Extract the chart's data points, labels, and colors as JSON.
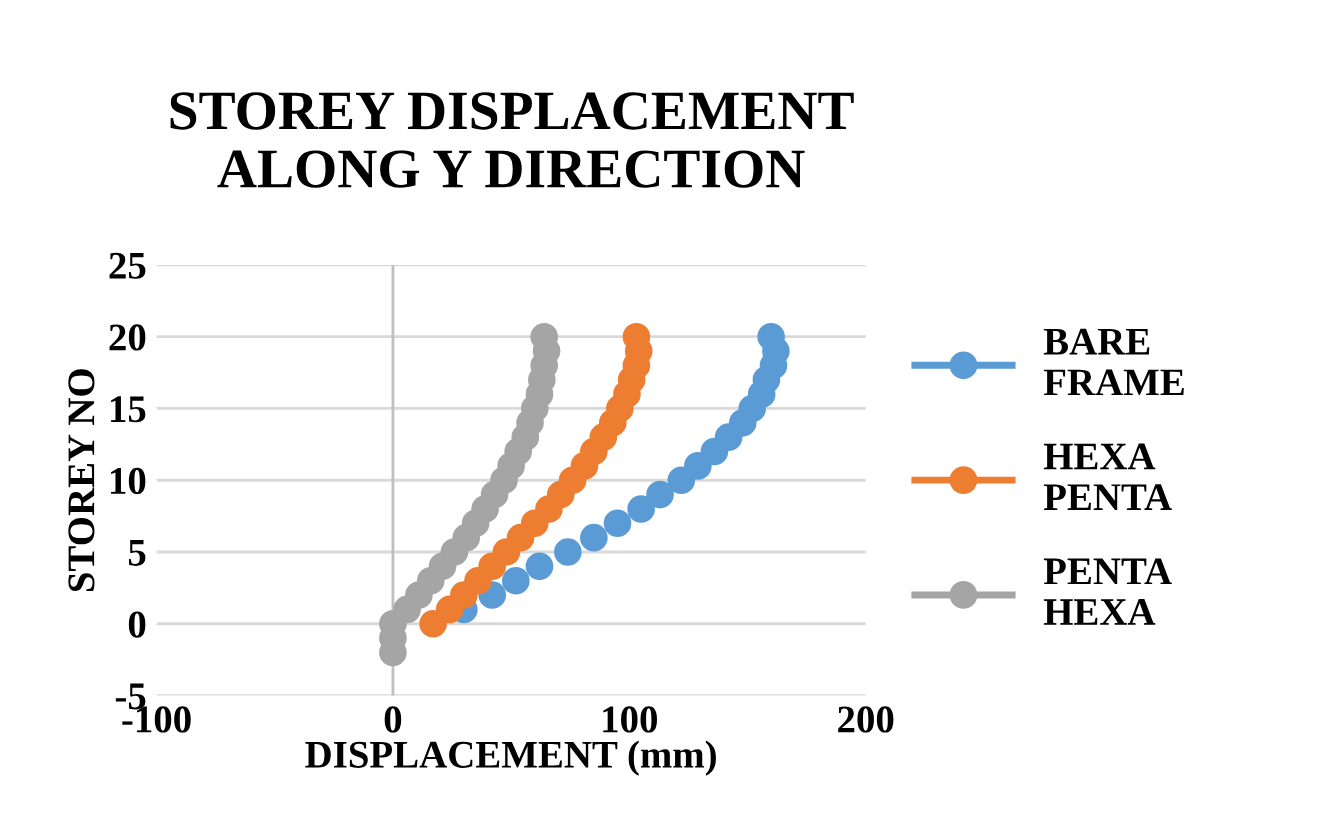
{
  "chart_data": {
    "type": "scatter",
    "title": "STOREY DISPLACEMENT\nALONG Y DIRECTION",
    "xlabel": "DISPLACEMENT (mm)",
    "ylabel": "STOREY NO",
    "xlim": [
      -100,
      200
    ],
    "xticks": [
      -100,
      0,
      100,
      200
    ],
    "ylim": [
      -5,
      25
    ],
    "yticks": [
      -5,
      0,
      5,
      10,
      15,
      20,
      25
    ],
    "grid": "y",
    "legend": "right",
    "marker": "circle",
    "ref_lines": [
      {
        "axis": "x",
        "value": 0,
        "color": "#bfbfbf"
      }
    ],
    "series": [
      {
        "name": "BARE FRAME",
        "color": "#5b9bd5",
        "x": [
          30,
          42,
          52,
          62,
          74,
          85,
          95,
          105,
          113,
          122,
          129,
          136,
          142,
          148,
          152,
          156,
          158,
          161,
          162,
          160
        ],
        "values": [
          1,
          2,
          3,
          4,
          5,
          6,
          7,
          8,
          9,
          10,
          11,
          12,
          13,
          14,
          15,
          16,
          17,
          18,
          19,
          20
        ]
      },
      {
        "name": "HEXA PENTA",
        "color": "#ed7d31",
        "x": [
          17,
          24,
          30,
          36,
          42,
          48,
          54,
          60,
          66,
          71,
          76,
          81,
          85,
          89,
          93,
          96,
          99,
          101,
          103,
          104,
          103
        ],
        "values": [
          0,
          1,
          2,
          3,
          4,
          5,
          6,
          7,
          8,
          9,
          10,
          11,
          12,
          13,
          14,
          15,
          16,
          17,
          18,
          19,
          20
        ]
      },
      {
        "name": "PENTA HEXA",
        "color": "#a5a5a5",
        "x": [
          0,
          0,
          0,
          6,
          11,
          16,
          21,
          26,
          31,
          35,
          39,
          43,
          47,
          50,
          53,
          56,
          58,
          60,
          62,
          63,
          64,
          65,
          64
        ],
        "values": [
          -2,
          -1,
          0,
          1,
          2,
          3,
          4,
          5,
          6,
          7,
          8,
          9,
          10,
          11,
          12,
          13,
          14,
          15,
          16,
          17,
          18,
          19,
          20
        ]
      }
    ]
  }
}
